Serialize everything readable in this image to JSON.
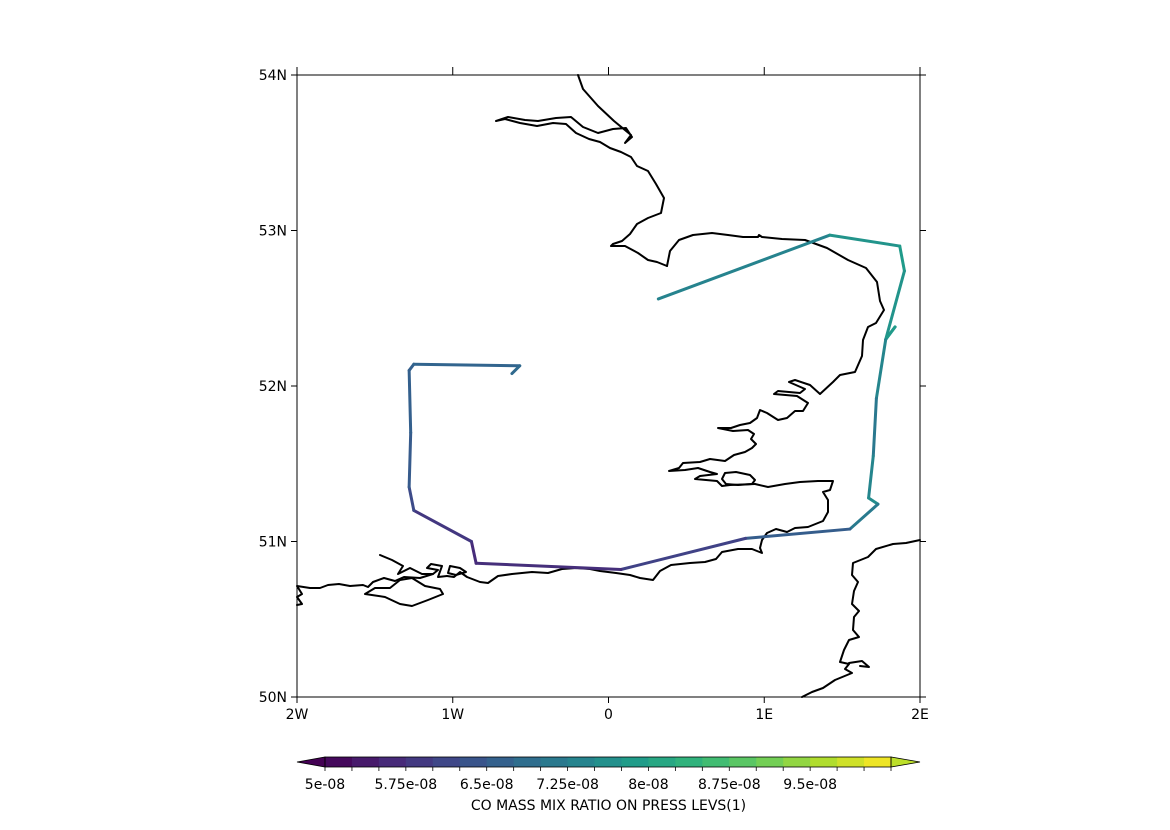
{
  "map": {
    "lon_range": [
      -2,
      2
    ],
    "lat_range": [
      50,
      54
    ],
    "x_ticks": [
      {
        "value": -2,
        "label": "2W"
      },
      {
        "value": -1,
        "label": "1W"
      },
      {
        "value": 0,
        "label": "0"
      },
      {
        "value": 1,
        "label": "1E"
      },
      {
        "value": 2,
        "label": "2E"
      }
    ],
    "y_ticks": [
      {
        "value": 50,
        "label": "50N"
      },
      {
        "value": 51,
        "label": "51N"
      },
      {
        "value": 52,
        "label": "52N"
      },
      {
        "value": 53,
        "label": "53N"
      },
      {
        "value": 54,
        "label": "54N"
      }
    ],
    "coastline_color": "#000000"
  },
  "colorbar": {
    "title": "CO MASS MIX RATIO ON PRESS LEVS(1)",
    "min": 5e-08,
    "max": 1.025e-07,
    "levels": 21,
    "labels": [
      "5e-08",
      "5.75e-08",
      "6.5e-08",
      "7.25e-08",
      "8e-08",
      "8.75e-08",
      "9.5e-08"
    ],
    "extend": "both",
    "colormap": [
      "#440154",
      "#482878",
      "#3e4989",
      "#31688e",
      "#26828e",
      "#1f9e89",
      "#35b779",
      "#6ece58",
      "#b5de2b",
      "#fde725"
    ]
  },
  "chart_data": {
    "type": "map-track",
    "x_label": "",
    "y_label": "",
    "flight_track": [
      {
        "lon": 0.32,
        "lat": 52.56,
        "value": 7.2e-08
      },
      {
        "lon": 1.42,
        "lat": 52.97,
        "value": 7.5e-08
      },
      {
        "lon": 1.87,
        "lat": 52.9,
        "value": 7.9e-08
      },
      {
        "lon": 1.9,
        "lat": 52.74,
        "value": 7.8e-08
      },
      {
        "lon": 1.78,
        "lat": 52.3,
        "value": 7.6e-08
      },
      {
        "lon": 1.84,
        "lat": 52.38,
        "value": 7.9e-08
      },
      {
        "lon": 1.78,
        "lat": 52.3,
        "value": 7.8e-08
      },
      {
        "lon": 1.72,
        "lat": 51.92,
        "value": 7e-08
      },
      {
        "lon": 1.7,
        "lat": 51.55,
        "value": 7.2e-08
      },
      {
        "lon": 1.67,
        "lat": 51.28,
        "value": 7.6e-08
      },
      {
        "lon": 1.73,
        "lat": 51.24,
        "value": 7.5e-08
      },
      {
        "lon": 1.55,
        "lat": 51.08,
        "value": 6.8e-08
      },
      {
        "lon": 0.88,
        "lat": 51.02,
        "value": 6.3e-08
      },
      {
        "lon": 0.08,
        "lat": 50.82,
        "value": 5.8e-08
      },
      {
        "lon": -0.85,
        "lat": 50.86,
        "value": 5.6e-08
      },
      {
        "lon": -0.88,
        "lat": 51.0,
        "value": 5.7e-08
      },
      {
        "lon": -1.25,
        "lat": 51.2,
        "value": 6e-08
      },
      {
        "lon": -1.28,
        "lat": 51.35,
        "value": 6.4e-08
      },
      {
        "lon": -1.27,
        "lat": 51.7,
        "value": 6.6e-08
      },
      {
        "lon": -1.28,
        "lat": 52.1,
        "value": 6.6e-08
      },
      {
        "lon": -1.25,
        "lat": 52.14,
        "value": 6.6e-08
      },
      {
        "lon": -0.57,
        "lat": 52.13,
        "value": 6.8e-08
      },
      {
        "lon": -0.62,
        "lat": 52.08,
        "value": 6.8e-08
      }
    ]
  }
}
